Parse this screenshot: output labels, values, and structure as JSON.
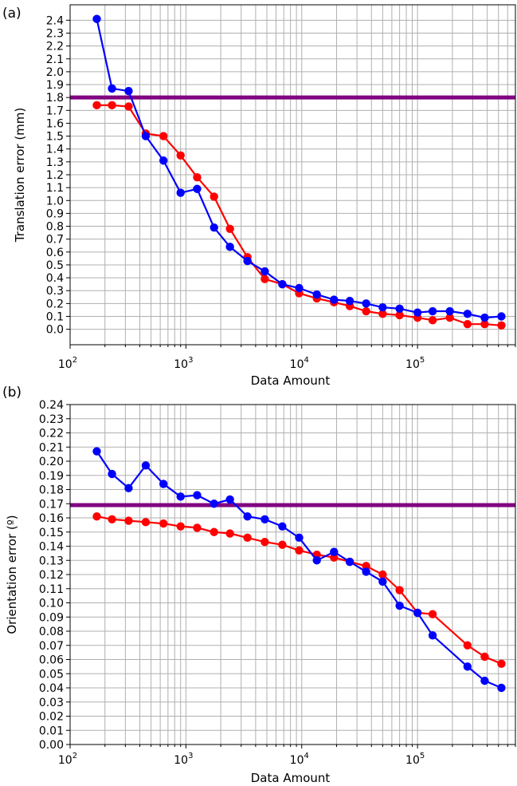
{
  "chart_data": [
    {
      "panel_label": "(a)",
      "type": "line",
      "xlabel": "Data Amount",
      "ylabel": "Translation error (mm)",
      "xscale": "log",
      "xlim": [
        100,
        700000
      ],
      "ylim": [
        -0.12,
        2.52
      ],
      "yticks": [
        "0.0",
        "0.1",
        "0.2",
        "0.3",
        "0.4",
        "0.5",
        "0.6",
        "0.7",
        "0.8",
        "0.9",
        "1.0",
        "1.1",
        "1.2",
        "1.3",
        "1.4",
        "1.5",
        "1.6",
        "1.7",
        "1.8",
        "1.9",
        "2.0",
        "2.1",
        "2.2",
        "2.3",
        "2.4"
      ],
      "xticks": [
        {
          "base": "10",
          "exp": "2"
        },
        {
          "base": "10",
          "exp": "3"
        },
        {
          "base": "10",
          "exp": "4"
        },
        {
          "base": "10",
          "exp": "5"
        }
      ],
      "grid": true,
      "reference_line": {
        "y": 1.8,
        "color": "#800080"
      },
      "x": [
        170,
        230,
        320,
        450,
        640,
        900,
        1250,
        1750,
        2400,
        3400,
        4800,
        6800,
        9500,
        13500,
        19000,
        26000,
        36000,
        50000,
        70000,
        100000,
        135000,
        190000,
        270000,
        380000,
        530000
      ],
      "series": [
        {
          "color": "#ff0000",
          "values": [
            1.74,
            1.74,
            1.73,
            1.52,
            1.5,
            1.35,
            1.18,
            1.03,
            0.78,
            0.56,
            0.39,
            0.35,
            0.28,
            0.24,
            0.21,
            0.18,
            0.14,
            0.12,
            0.11,
            0.09,
            0.07,
            0.09,
            0.04,
            0.04,
            0.03
          ]
        },
        {
          "color": "#0000ff",
          "values": [
            2.41,
            1.87,
            1.85,
            1.5,
            1.31,
            1.06,
            1.09,
            0.79,
            0.64,
            0.53,
            0.45,
            0.35,
            0.32,
            0.27,
            0.23,
            0.22,
            0.2,
            0.17,
            0.16,
            0.13,
            0.14,
            0.14,
            0.12,
            0.09,
            0.1
          ]
        }
      ]
    },
    {
      "panel_label": "(b)",
      "type": "line",
      "xlabel": "Data Amount",
      "ylabel": "Orientation error (º)",
      "xscale": "log",
      "xlim": [
        100,
        700000
      ],
      "ylim": [
        0.0,
        0.24
      ],
      "yticks": [
        "0.00",
        "0.01",
        "0.02",
        "0.03",
        "0.04",
        "0.05",
        "0.06",
        "0.07",
        "0.08",
        "0.09",
        "0.10",
        "0.11",
        "0.12",
        "0.13",
        "0.14",
        "0.15",
        "0.16",
        "0.17",
        "0.18",
        "0.19",
        "0.20",
        "0.21",
        "0.22",
        "0.23",
        "0.24"
      ],
      "xticks": [
        {
          "base": "10",
          "exp": "2"
        },
        {
          "base": "10",
          "exp": "3"
        },
        {
          "base": "10",
          "exp": "4"
        },
        {
          "base": "10",
          "exp": "5"
        }
      ],
      "grid": true,
      "reference_line": {
        "y": 0.169,
        "color": "#800080"
      },
      "x": [
        170,
        230,
        320,
        450,
        640,
        900,
        1250,
        1750,
        2400,
        3400,
        4800,
        6800,
        9500,
        13500,
        19000,
        26000,
        36000,
        50000,
        70000,
        100000,
        135000,
        270000,
        380000,
        530000
      ],
      "series": [
        {
          "color": "#ff0000",
          "values": [
            0.161,
            0.159,
            0.158,
            0.157,
            0.156,
            0.154,
            0.153,
            0.15,
            0.149,
            0.146,
            0.143,
            0.141,
            0.137,
            0.134,
            0.132,
            0.129,
            0.126,
            0.12,
            0.109,
            0.093,
            0.092,
            0.07,
            0.062,
            0.057
          ]
        },
        {
          "color": "#0000ff",
          "values": [
            0.207,
            0.191,
            0.181,
            0.197,
            0.184,
            0.175,
            0.176,
            0.17,
            0.173,
            0.161,
            0.159,
            0.154,
            0.146,
            0.13,
            0.136,
            0.129,
            0.122,
            0.115,
            0.098,
            0.093,
            0.077,
            0.055,
            0.045,
            0.04
          ]
        }
      ]
    }
  ]
}
